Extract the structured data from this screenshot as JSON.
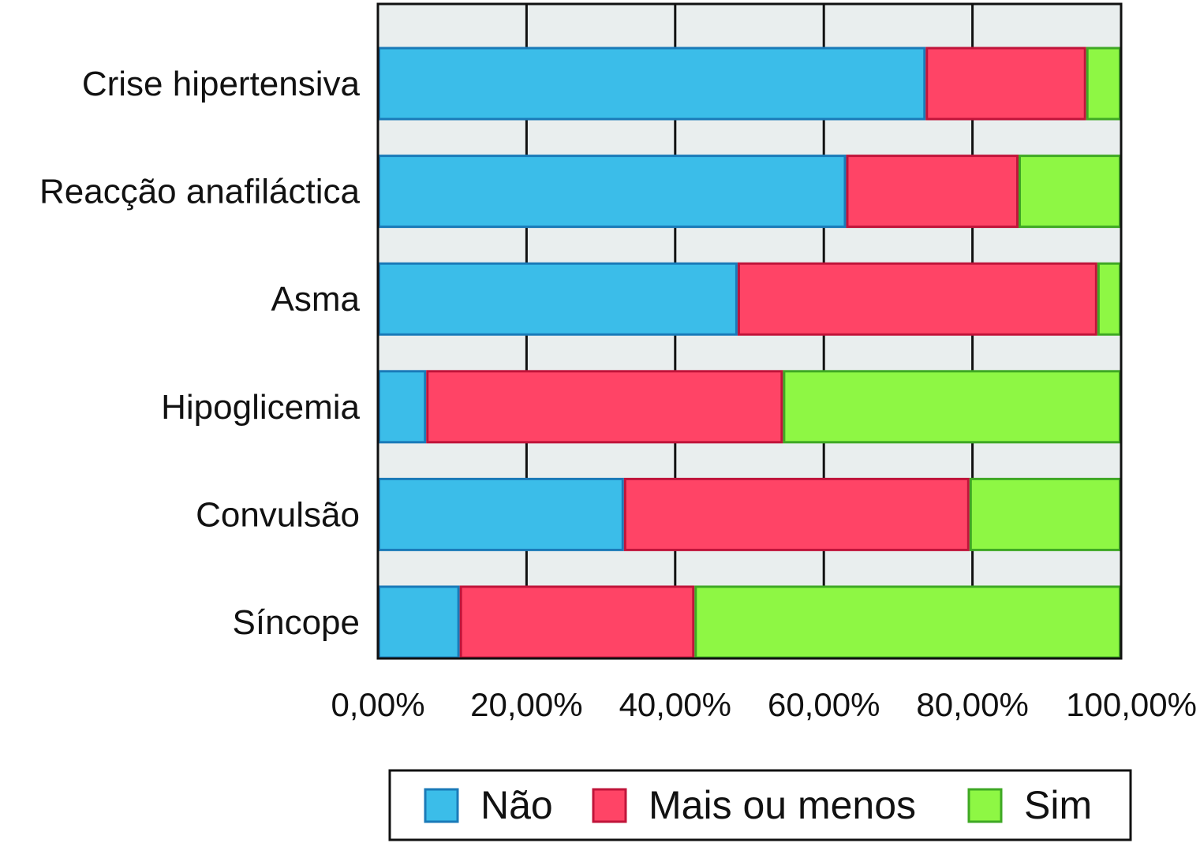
{
  "chart_data": {
    "type": "bar",
    "orientation": "horizontal",
    "stacked": true,
    "percent_stacked": true,
    "categories": [
      "Crise hipertensiva",
      "Reacção anafiláctica",
      "Asma",
      "Hipoglicemia",
      "Convulsão",
      "Síncope"
    ],
    "series": [
      {
        "name": "Não",
        "color": "#3bbde9",
        "stroke": "#1a7ab8",
        "values": [
          73.7,
          63.0,
          48.4,
          6.5,
          33.1,
          11.0
        ]
      },
      {
        "name": "Mais ou menos",
        "color": "#ff4466",
        "stroke": "#c0143a",
        "values": [
          21.6,
          23.2,
          48.4,
          48.0,
          46.5,
          31.6
        ]
      },
      {
        "name": "Sim",
        "color": "#8ef744",
        "stroke": "#3fa824",
        "values": [
          4.7,
          13.8,
          3.2,
          45.5,
          20.4,
          57.4
        ]
      }
    ],
    "xlim": [
      0,
      100
    ],
    "x_ticks": [
      "0,00%",
      "20,00%",
      "40,00%",
      "60,00%",
      "80,00%",
      "100,00%"
    ],
    "grid": true,
    "plot_background": "#e9eeee",
    "legend_position": "bottom",
    "title": "",
    "xlabel": "",
    "ylabel": ""
  }
}
